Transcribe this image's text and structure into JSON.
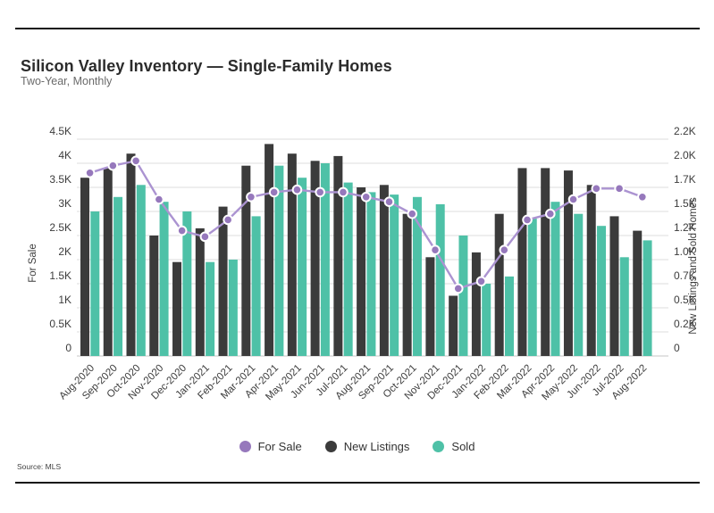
{
  "header": {
    "title": "Silicon Valley Inventory — Single-Family Homes",
    "subtitle": "Two-Year, Monthly"
  },
  "legend": [
    {
      "label": "For Sale",
      "color": "#9678bc"
    },
    {
      "label": "New Listings",
      "color": "#3b3b3b"
    },
    {
      "label": "Sold",
      "color": "#4ec1a7"
    }
  ],
  "source": {
    "text": "Source: MLS"
  },
  "chart_data": {
    "type": "bar",
    "subtype": "grouped-bar-with-line-overlay",
    "title": "Silicon Valley Inventory — Single-Family Homes",
    "subtitle": "Two-Year, Monthly",
    "grid": "horizontal",
    "legend_position": "bottom",
    "categories": [
      "Aug-2020",
      "Sep-2020",
      "Oct-2020",
      "Nov-2020",
      "Dec-2020",
      "Jan-2021",
      "Feb-2021",
      "Mar-2021",
      "Apr-2021",
      "May-2021",
      "Jun-2021",
      "Jul-2021",
      "Aug-2021",
      "Sep-2021",
      "Oct-2021",
      "Nov-2021",
      "Dec-2021",
      "Jan-2022",
      "Feb-2022",
      "Mar-2022",
      "Apr-2022",
      "May-2022",
      "Jun-2022",
      "Jul-2022",
      "Aug-2022"
    ],
    "series": [
      {
        "name": "For Sale",
        "type": "line",
        "axis": "left",
        "dot_color": "#9678bc",
        "line_color": "#ab93d1",
        "values": [
          3800,
          3950,
          4050,
          3250,
          2600,
          2475,
          2825,
          3300,
          3400,
          3450,
          3400,
          3400,
          3300,
          3200,
          2950,
          2200,
          1400,
          1550,
          2200,
          2825,
          2950,
          3250,
          3475,
          3475,
          3300
        ]
      },
      {
        "name": "New Listings",
        "type": "bar",
        "axis": "right",
        "color": "#3b3b3b",
        "values": [
          1850,
          1950,
          2100,
          1250,
          975,
          1325,
          1550,
          1975,
          2200,
          2100,
          2025,
          2075,
          1750,
          1775,
          1475,
          1025,
          625,
          1075,
          1475,
          1950,
          1950,
          1925,
          1775,
          1450,
          1300
        ]
      },
      {
        "name": "Sold",
        "type": "bar",
        "axis": "right",
        "color": "#4ec1a7",
        "values": [
          1500,
          1650,
          1775,
          1600,
          1500,
          975,
          1000,
          1450,
          1975,
          1850,
          2000,
          1800,
          1700,
          1675,
          1650,
          1575,
          1250,
          750,
          825,
          1425,
          1600,
          1475,
          1350,
          1025,
          1200
        ]
      }
    ],
    "left_axis": {
      "title": "For Sale",
      "ticks": [
        "4.5K",
        "4K",
        "3.5K",
        "3K",
        "2.5K",
        "2K",
        "1.5K",
        "1K",
        "0.5K",
        "0"
      ],
      "tick_values": [
        4500,
        4000,
        3500,
        3000,
        2500,
        2000,
        1500,
        1000,
        500,
        0
      ],
      "min": 0,
      "max": 4500
    },
    "right_axis": {
      "title": "New Listings and Sold Homes",
      "ticks": [
        "2.2K",
        "2.0K",
        "1.7K",
        "1.5K",
        "1.2K",
        "1.0K",
        "0.7K",
        "0.5K",
        "0.2K",
        "0"
      ],
      "tick_values": [
        2250,
        2000,
        1750,
        1500,
        1250,
        1000,
        750,
        500,
        250,
        0
      ],
      "min": 0,
      "max": 2250
    }
  }
}
